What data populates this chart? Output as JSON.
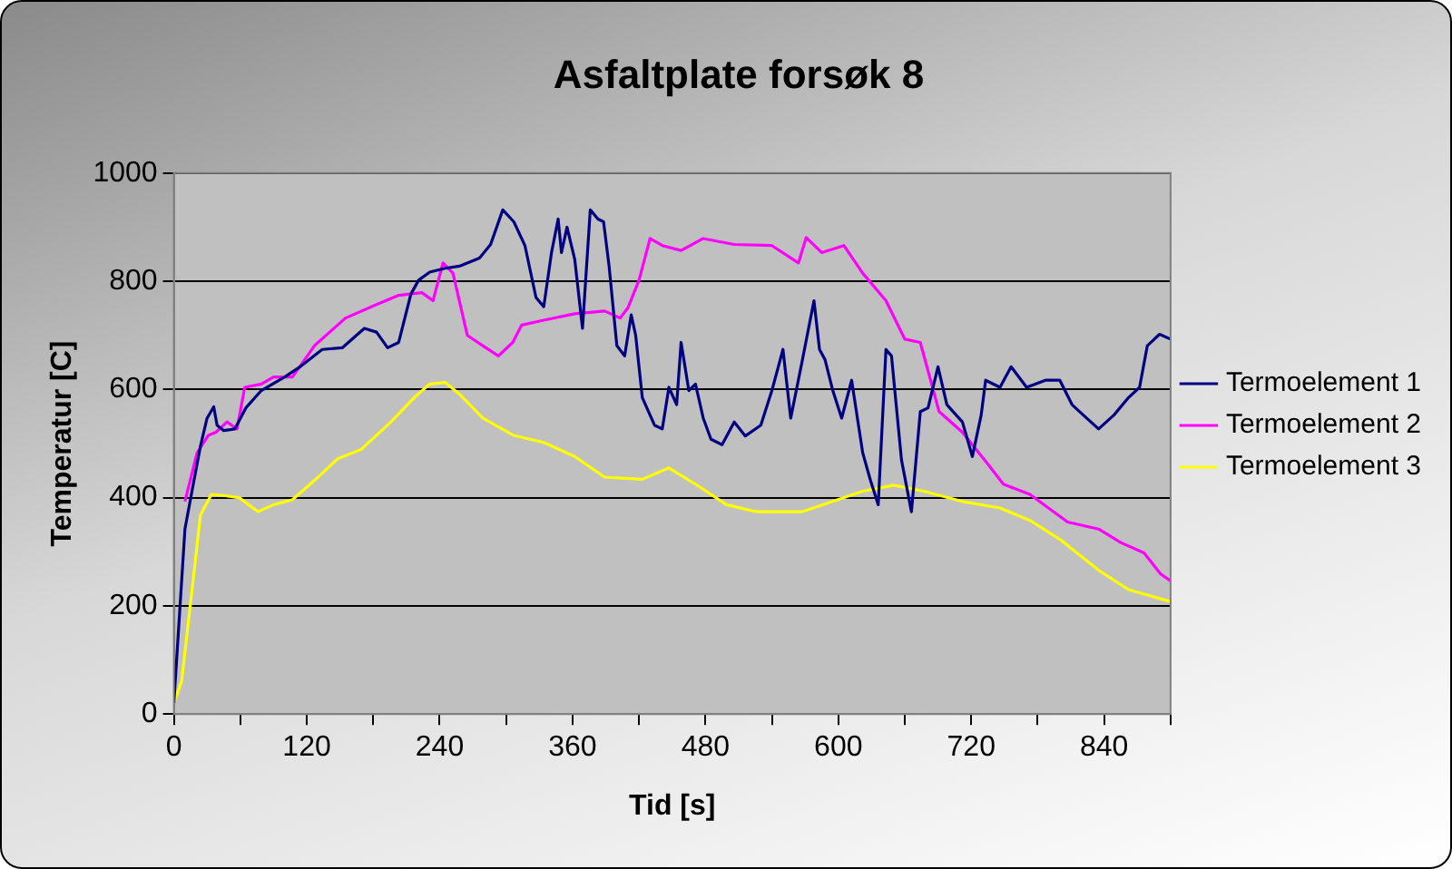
{
  "chart_data": {
    "type": "line",
    "title": "Asfaltplate forsøk 8",
    "xlabel": "Tid [s]",
    "ylabel": "Temperatur [C]",
    "xlim": [
      0,
      900
    ],
    "xticks": [
      0,
      {
        "value": 60,
        "label": null
      },
      120,
      {
        "value": 180,
        "label": null
      },
      240,
      {
        "value": 300,
        "label": null
      },
      360,
      {
        "value": 420,
        "label": null
      },
      480,
      {
        "value": 540,
        "label": null
      },
      600,
      {
        "value": 660,
        "label": null
      },
      720,
      {
        "value": 780,
        "label": null
      },
      840,
      {
        "value": 900,
        "label": null
      }
    ],
    "ylim": [
      0,
      1000
    ],
    "yticks": [
      0,
      200,
      400,
      600,
      800,
      1000
    ],
    "grid": "y",
    "legend": "right",
    "marker": "none",
    "line_style": "solid",
    "series": [
      {
        "name": "Termoelement 1",
        "color": "#000080",
        "x": [
          0,
          10,
          17,
          24,
          30,
          36,
          39,
          45,
          55,
          65,
          79,
          100,
          114,
          134,
          152,
          172,
          183,
          193,
          203,
          214,
          221,
          231,
          245,
          258,
          276,
          286,
          297,
          307,
          317,
          327,
          334,
          341,
          347,
          350,
          355,
          362,
          369,
          376,
          383,
          388,
          393,
          400,
          407,
          413,
          417,
          423,
          434,
          441,
          447,
          454,
          458,
          465,
          471,
          478,
          485,
          495,
          506,
          516,
          530,
          540,
          550,
          557,
          567,
          578,
          583,
          588,
          595,
          603,
          612,
          622,
          629,
          636,
          643,
          648,
          657,
          666,
          674,
          681,
          690,
          698,
          712,
          721,
          729,
          733,
          746,
          756,
          770,
          787,
          800,
          811,
          821,
          835,
          849,
          862,
          872,
          879,
          890,
          900
        ],
        "values": [
          20,
          342,
          419,
          495,
          547,
          568,
          534,
          524,
          527,
          566,
          598,
          623,
          642,
          674,
          677,
          713,
          706,
          677,
          687,
          776,
          802,
          817,
          824,
          828,
          843,
          868,
          932,
          910,
          866,
          770,
          753,
          853,
          915,
          853,
          900,
          840,
          713,
          932,
          915,
          910,
          828,
          681,
          662,
          738,
          700,
          585,
          534,
          527,
          604,
          572,
          687,
          598,
          610,
          547,
          508,
          498,
          540,
          514,
          534,
          598,
          674,
          547,
          649,
          764,
          674,
          655,
          598,
          547,
          617,
          483,
          432,
          387,
          674,
          662,
          470,
          374,
          559,
          566,
          642,
          572,
          540,
          476,
          553,
          617,
          604,
          642,
          604,
          617,
          617,
          572,
          553,
          527,
          553,
          585,
          604,
          681,
          702,
          693
        ]
      },
      {
        "name": "Termoelement 2",
        "color": "#ff00ff",
        "x": [
          10,
          21,
          31,
          38,
          48,
          57,
          64,
          79,
          90,
          107,
          127,
          155,
          183,
          203,
          224,
          234,
          243,
          252,
          265,
          279,
          293,
          306,
          314,
          334,
          362,
          389,
          403,
          410,
          420,
          430,
          441,
          458,
          478,
          506,
          540,
          564,
          571,
          585,
          605,
          622,
          643,
          660,
          674,
          691,
          712,
          732,
          749,
          773,
          807,
          835,
          855,
          876,
          891,
          900
        ],
        "values": [
          393,
          483,
          515,
          521,
          540,
          527,
          604,
          610,
          623,
          623,
          681,
          732,
          757,
          774,
          779,
          764,
          834,
          815,
          700,
          681,
          662,
          687,
          719,
          728,
          740,
          745,
          732,
          751,
          802,
          879,
          866,
          857,
          879,
          868,
          866,
          834,
          881,
          853,
          866,
          815,
          764,
          693,
          687,
          559,
          521,
          470,
          425,
          406,
          355,
          342,
          317,
          298,
          259,
          246
        ]
      },
      {
        "name": "Termoelement 3",
        "color": "#ffff00",
        "x": [
          0,
          7,
          17,
          24,
          34,
          45,
          59,
          76,
          90,
          107,
          127,
          148,
          169,
          196,
          217,
          231,
          245,
          258,
          279,
          307,
          334,
          362,
          389,
          423,
          447,
          471,
          499,
          526,
          567,
          595,
          622,
          650,
          677,
          712,
          746,
          773,
          800,
          835,
          862,
          900
        ],
        "values": [
          20,
          61,
          240,
          368,
          406,
          404,
          400,
          374,
          387,
          396,
          432,
          472,
          489,
          540,
          585,
          610,
          613,
          591,
          547,
          515,
          502,
          476,
          438,
          434,
          455,
          425,
          387,
          374,
          374,
          393,
          412,
          423,
          412,
          393,
          381,
          358,
          323,
          266,
          230,
          208
        ]
      }
    ]
  }
}
